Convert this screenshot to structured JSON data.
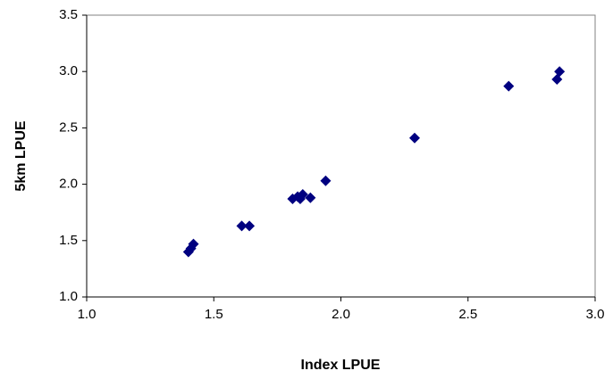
{
  "chart_data": {
    "type": "scatter",
    "x_label": "Index LPUE",
    "y_label": "5km LPUE",
    "series": [
      {
        "color": "#000080",
        "x": [
          1.4,
          1.41,
          1.42,
          1.61,
          1.64,
          1.81,
          1.83,
          1.84,
          1.85,
          1.88,
          1.94,
          2.29,
          2.66,
          2.85,
          2.86
        ],
        "values": [
          1.4,
          1.43,
          1.47,
          1.63,
          1.63,
          1.87,
          1.89,
          1.87,
          1.91,
          1.88,
          2.03,
          2.41,
          2.87,
          2.93,
          3.0
        ]
      }
    ],
    "xlim": [
      1,
      3
    ],
    "xticks": [
      {
        "value": 1,
        "label": "1.0"
      },
      {
        "value": 1.5,
        "label": "1.5"
      },
      {
        "value": 2,
        "label": "2.0"
      },
      {
        "value": 2.5,
        "label": "2.5"
      },
      {
        "value": 3,
        "label": "3.0"
      }
    ],
    "ylim": [
      1,
      3.5
    ],
    "yticks": [
      {
        "value": 1,
        "label": "1.0"
      },
      {
        "value": 1.5,
        "label": "1.5"
      },
      {
        "value": 2,
        "label": "2.0"
      },
      {
        "value": 2.5,
        "label": "2.5"
      },
      {
        "value": 3,
        "label": "3.0"
      },
      {
        "value": 3.5,
        "label": "3.5"
      }
    ],
    "grid": false
  }
}
